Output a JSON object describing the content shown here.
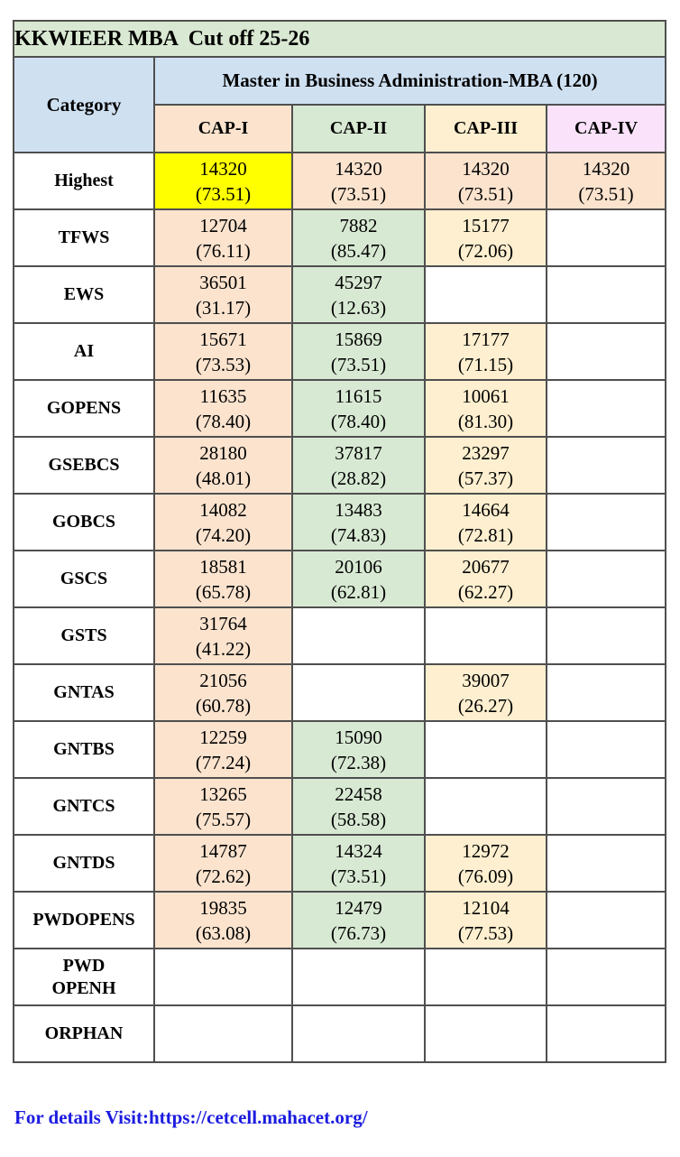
{
  "title": "KKWIEER MBA  Cut off 25-26",
  "header": {
    "category_label": "Category",
    "program_label": "Master in Business Administration-MBA (120)",
    "cap_columns": [
      "CAP-I",
      "CAP-II",
      "CAP-III",
      "CAP-IV"
    ]
  },
  "colors": {
    "title_bg": "#d9e8d2",
    "header_bg": "#cfe0f1",
    "cap1_bg": "#fbe3ce",
    "cap2_bg": "#d8e9d3",
    "cap3_bg": "#fdefcf",
    "cap4_bg": "#fae3fa",
    "highlight_bg": "#ffff00",
    "empty_bg": "#ffffff",
    "link_color": "#1b1be0"
  },
  "rows": [
    {
      "category": "Highest",
      "cells": [
        {
          "rank": "14320",
          "percentile": "(73.51)",
          "bg": "highlight_bg"
        },
        {
          "rank": "14320",
          "percentile": "(73.51)",
          "bg": "cap1_bg"
        },
        {
          "rank": "14320",
          "percentile": "(73.51)",
          "bg": "cap1_bg"
        },
        {
          "rank": "14320",
          "percentile": "(73.51)",
          "bg": "cap1_bg"
        }
      ]
    },
    {
      "category": "TFWS",
      "cells": [
        {
          "rank": "12704",
          "percentile": "(76.11)",
          "bg": "cap1_bg"
        },
        {
          "rank": "7882",
          "percentile": "(85.47)",
          "bg": "cap2_bg"
        },
        {
          "rank": "15177",
          "percentile": "(72.06)",
          "bg": "cap3_bg"
        },
        {
          "rank": "",
          "percentile": "",
          "bg": "empty_bg"
        }
      ]
    },
    {
      "category": "EWS",
      "cells": [
        {
          "rank": "36501",
          "percentile": "(31.17)",
          "bg": "cap1_bg"
        },
        {
          "rank": "45297",
          "percentile": "(12.63)",
          "bg": "cap2_bg"
        },
        {
          "rank": "",
          "percentile": "",
          "bg": "empty_bg"
        },
        {
          "rank": "",
          "percentile": "",
          "bg": "empty_bg"
        }
      ]
    },
    {
      "category": "AI",
      "cells": [
        {
          "rank": "15671",
          "percentile": "(73.53)",
          "bg": "cap1_bg"
        },
        {
          "rank": "15869",
          "percentile": "(73.51)",
          "bg": "cap2_bg"
        },
        {
          "rank": "17177",
          "percentile": "(71.15)",
          "bg": "cap3_bg"
        },
        {
          "rank": "",
          "percentile": "",
          "bg": "empty_bg"
        }
      ]
    },
    {
      "category": "GOPENS",
      "cells": [
        {
          "rank": "11635",
          "percentile": "(78.40)",
          "bg": "cap1_bg"
        },
        {
          "rank": "11615",
          "percentile": "(78.40)",
          "bg": "cap2_bg"
        },
        {
          "rank": "10061",
          "percentile": "(81.30)",
          "bg": "cap3_bg"
        },
        {
          "rank": "",
          "percentile": "",
          "bg": "empty_bg"
        }
      ]
    },
    {
      "category": "GSEBCS",
      "cells": [
        {
          "rank": "28180",
          "percentile": "(48.01)",
          "bg": "cap1_bg"
        },
        {
          "rank": "37817",
          "percentile": "(28.82)",
          "bg": "cap2_bg"
        },
        {
          "rank": "23297",
          "percentile": "(57.37)",
          "bg": "cap3_bg"
        },
        {
          "rank": "",
          "percentile": "",
          "bg": "empty_bg"
        }
      ]
    },
    {
      "category": "GOBCS",
      "cells": [
        {
          "rank": "14082",
          "percentile": "(74.20)",
          "bg": "cap1_bg"
        },
        {
          "rank": "13483",
          "percentile": "(74.83)",
          "bg": "cap2_bg"
        },
        {
          "rank": "14664",
          "percentile": "(72.81)",
          "bg": "cap3_bg"
        },
        {
          "rank": "",
          "percentile": "",
          "bg": "empty_bg"
        }
      ]
    },
    {
      "category": "GSCS",
      "cells": [
        {
          "rank": "18581",
          "percentile": "(65.78)",
          "bg": "cap1_bg"
        },
        {
          "rank": "20106",
          "percentile": "(62.81)",
          "bg": "cap2_bg"
        },
        {
          "rank": "20677",
          "percentile": "(62.27)",
          "bg": "cap3_bg"
        },
        {
          "rank": "",
          "percentile": "",
          "bg": "empty_bg"
        }
      ]
    },
    {
      "category": "GSTS",
      "cells": [
        {
          "rank": "31764",
          "percentile": "(41.22)",
          "bg": "cap1_bg"
        },
        {
          "rank": "",
          "percentile": "",
          "bg": "empty_bg"
        },
        {
          "rank": "",
          "percentile": "",
          "bg": "empty_bg"
        },
        {
          "rank": "",
          "percentile": "",
          "bg": "empty_bg"
        }
      ]
    },
    {
      "category": "GNTAS",
      "cells": [
        {
          "rank": "21056",
          "percentile": "(60.78)",
          "bg": "cap1_bg"
        },
        {
          "rank": "",
          "percentile": "",
          "bg": "empty_bg"
        },
        {
          "rank": "39007",
          "percentile": "(26.27)",
          "bg": "cap3_bg"
        },
        {
          "rank": "",
          "percentile": "",
          "bg": "empty_bg"
        }
      ]
    },
    {
      "category": "GNTBS",
      "cells": [
        {
          "rank": "12259",
          "percentile": "(77.24)",
          "bg": "cap1_bg"
        },
        {
          "rank": "15090",
          "percentile": "(72.38)",
          "bg": "cap2_bg"
        },
        {
          "rank": "",
          "percentile": "",
          "bg": "empty_bg"
        },
        {
          "rank": "",
          "percentile": "",
          "bg": "empty_bg"
        }
      ]
    },
    {
      "category": "GNTCS",
      "cells": [
        {
          "rank": "13265",
          "percentile": "(75.57)",
          "bg": "cap1_bg"
        },
        {
          "rank": "22458",
          "percentile": "(58.58)",
          "bg": "cap2_bg"
        },
        {
          "rank": "",
          "percentile": "",
          "bg": "empty_bg"
        },
        {
          "rank": "",
          "percentile": "",
          "bg": "empty_bg"
        }
      ]
    },
    {
      "category": "GNTDS",
      "cells": [
        {
          "rank": "14787",
          "percentile": "(72.62)",
          "bg": "cap1_bg"
        },
        {
          "rank": "14324",
          "percentile": "(73.51)",
          "bg": "cap2_bg"
        },
        {
          "rank": "12972",
          "percentile": "(76.09)",
          "bg": "cap3_bg"
        },
        {
          "rank": "",
          "percentile": "",
          "bg": "empty_bg"
        }
      ]
    },
    {
      "category": "PWDOPENS",
      "cells": [
        {
          "rank": "19835",
          "percentile": "(63.08)",
          "bg": "cap1_bg"
        },
        {
          "rank": "12479",
          "percentile": "(76.73)",
          "bg": "cap2_bg"
        },
        {
          "rank": "12104",
          "percentile": "(77.53)",
          "bg": "cap3_bg"
        },
        {
          "rank": "",
          "percentile": "",
          "bg": "empty_bg"
        }
      ]
    },
    {
      "category": "PWD\nOPENH",
      "cells": [
        {
          "rank": "",
          "percentile": "",
          "bg": "empty_bg"
        },
        {
          "rank": "",
          "percentile": "",
          "bg": "empty_bg"
        },
        {
          "rank": "",
          "percentile": "",
          "bg": "empty_bg"
        },
        {
          "rank": "",
          "percentile": "",
          "bg": "empty_bg"
        }
      ]
    },
    {
      "category": "ORPHAN",
      "cells": [
        {
          "rank": "",
          "percentile": "",
          "bg": "empty_bg"
        },
        {
          "rank": "",
          "percentile": "",
          "bg": "empty_bg"
        },
        {
          "rank": "",
          "percentile": "",
          "bg": "empty_bg"
        },
        {
          "rank": "",
          "percentile": "",
          "bg": "empty_bg"
        }
      ]
    }
  ],
  "footer": {
    "link_text": "For details Visit:https://cetcell.mahacet.org/"
  }
}
